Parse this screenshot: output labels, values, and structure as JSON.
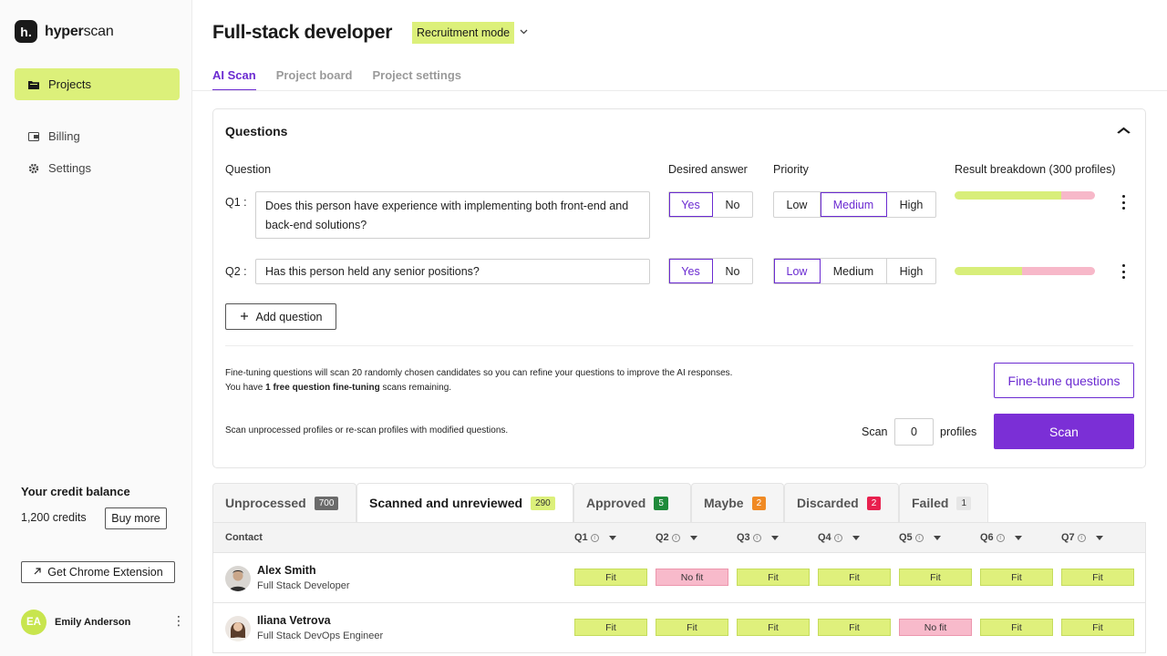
{
  "app": {
    "logo_mark": "h.",
    "logo_bold": "hyper",
    "logo_light": "scan"
  },
  "sidebar": {
    "items": [
      {
        "label": "Projects",
        "icon": "folder-icon",
        "active": true
      },
      {
        "label": "Billing",
        "icon": "wallet-icon",
        "active": false
      },
      {
        "label": "Settings",
        "icon": "gear-icon",
        "active": false
      }
    ],
    "credit_title": "Your credit balance",
    "credit_amount": "1,200 credits",
    "buy_more": "Buy more",
    "chrome_extension": "Get Chrome Extension",
    "user": {
      "initials": "EA",
      "name": "Emily Anderson"
    }
  },
  "header": {
    "title": "Full-stack developer",
    "mode": "Recruitment mode",
    "tabs": [
      {
        "label": "AI Scan",
        "active": true
      },
      {
        "label": "Project board",
        "active": false
      },
      {
        "label": "Project settings",
        "active": false
      }
    ]
  },
  "questions": {
    "title": "Questions",
    "columns": {
      "question": "Question",
      "desired": "Desired answer",
      "priority": "Priority",
      "breakdown": "Result breakdown (300 profiles)"
    },
    "answer_options": [
      "Yes",
      "No"
    ],
    "priority_options": [
      "Low",
      "Medium",
      "High"
    ],
    "items": [
      {
        "num": "Q1 :",
        "text": "Does this person have experience with implementing both front-end and back-end solutions?",
        "desired": "Yes",
        "priority": "Medium",
        "fit_fraction": 0.76
      },
      {
        "num": "Q2 :",
        "text": "Has this person held any senior positions?",
        "desired": "Yes",
        "priority": "Low",
        "fit_fraction": 0.48
      }
    ],
    "add_question": "Add question",
    "finetune_line1": "Fine-tuning questions will scan 20 randomly chosen candidates so you can refine your questions to improve the AI responses.",
    "finetune_line2_pre": "You have ",
    "finetune_line2_bold": "1 free question fine-tuning",
    "finetune_line2_post": " scans remaining.",
    "finetune_button": "Fine-tune questions",
    "scan_info": "Scan unprocessed profiles or re-scan profiles with modified questions.",
    "scan_label": "Scan",
    "scan_count": "0",
    "profiles_label": "profiles",
    "scan_button": "Scan"
  },
  "result_tabs": [
    {
      "label": "Unprocessed",
      "count": "700",
      "badge_color": "#6b6b6b",
      "active": false
    },
    {
      "label": "Scanned and unreviewed",
      "count": "290",
      "badge_color": "#dcf07a",
      "active": true
    },
    {
      "label": "Approved",
      "count": "5",
      "badge_color": "#1f8a3a",
      "active": false
    },
    {
      "label": "Maybe",
      "count": "2",
      "badge_color": "#f08a24",
      "active": false
    },
    {
      "label": "Discarded",
      "count": "2",
      "badge_color": "#e8204e",
      "active": false
    },
    {
      "label": "Failed",
      "count": "1",
      "badge_color": "#e6e6e6",
      "active": false
    }
  ],
  "table": {
    "contact_header": "Contact",
    "q_headers": [
      "Q1",
      "Q2",
      "Q3",
      "Q4",
      "Q5",
      "Q6",
      "Q7"
    ],
    "rows": [
      {
        "name": "Alex Smith",
        "role": "Full Stack Developer",
        "results": [
          "Fit",
          "No fit",
          "Fit",
          "Fit",
          "Fit",
          "Fit",
          "Fit"
        ]
      },
      {
        "name": "Iliana Vetrova",
        "role": "Full Stack DevOps Engineer",
        "results": [
          "Fit",
          "Fit",
          "Fit",
          "Fit",
          "No fit",
          "Fit",
          "Fit"
        ]
      }
    ]
  },
  "colors": {
    "accent": "#6b2bd1",
    "lime": "#dcf07a",
    "nofit": "#f8bacb"
  }
}
